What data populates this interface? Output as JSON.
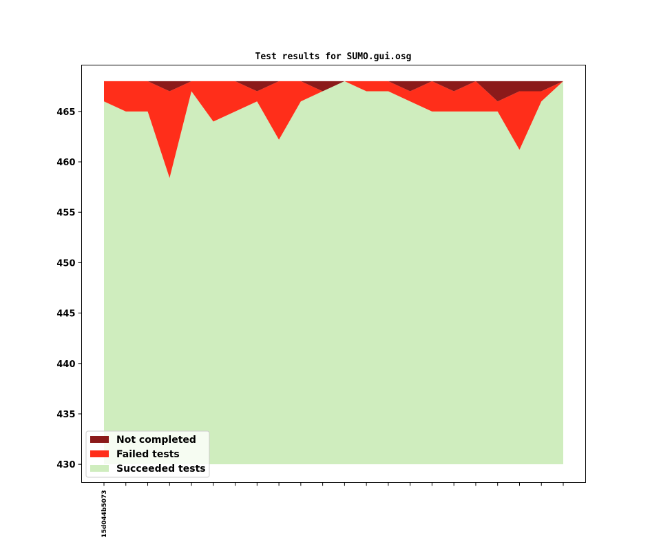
{
  "chart_data": {
    "type": "area",
    "title": "Test results for SUMO.gui.osg",
    "xlabel": "",
    "ylabel": "",
    "ylim": [
      428.2,
      469.6
    ],
    "ylim_fill_base": 430,
    "yticks": [
      430,
      435,
      440,
      445,
      450,
      455,
      460,
      465
    ],
    "x_count": 22,
    "x_tick_labels": [
      "15d044b5073",
      "",
      "",
      "",
      "",
      "",
      "",
      "",
      "",
      "",
      "",
      "",
      "",
      "",
      "",
      "",
      "",
      "",
      "",
      "",
      "",
      ""
    ],
    "grid": false,
    "legend_position": "lower-left",
    "stacked_totals": {
      "total": [
        468,
        468,
        468,
        468,
        468,
        468,
        468,
        468,
        468,
        468,
        468,
        468,
        468,
        468,
        468,
        468,
        468,
        468,
        468,
        468,
        468,
        468
      ]
    },
    "series": [
      {
        "name": "Not completed",
        "color": "#8b1a1a",
        "values": [
          0,
          0,
          0,
          1,
          0,
          0,
          0,
          1,
          0,
          0,
          1,
          0,
          0,
          0,
          1,
          0,
          1,
          0,
          2,
          1,
          1,
          0
        ]
      },
      {
        "name": "Failed tests",
        "color": "#ff2e1a",
        "values": [
          2,
          3,
          3,
          8.6,
          1,
          4,
          3,
          1,
          5.8,
          2,
          0,
          0,
          1,
          1,
          1,
          3,
          2,
          3,
          1,
          5.8,
          1,
          0
        ]
      },
      {
        "name": "Succeeded tests",
        "color": "#cfedbe",
        "values": [
          466,
          465,
          465,
          458.4,
          467,
          464,
          465,
          466,
          462.2,
          466,
          467,
          468,
          467,
          467,
          466,
          465,
          465,
          465,
          465,
          461.2,
          466,
          468
        ]
      }
    ],
    "legend_order": [
      "Not completed",
      "Failed tests",
      "Succeeded tests"
    ]
  }
}
